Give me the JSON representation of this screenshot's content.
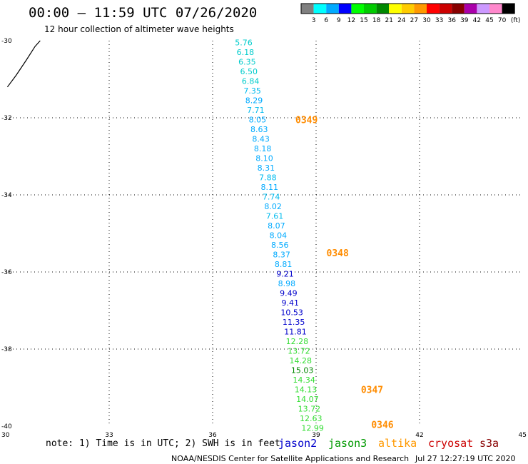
{
  "header": {
    "title": "00:00 – 11:59 UTC 07/26/2020",
    "subtitle": "12 hour collection of altimeter wave heights"
  },
  "legend": {
    "unit": "(ft)",
    "colors": [
      "#808080",
      "#00ffff",
      "#00aaff",
      "#0000ff",
      "#00ff00",
      "#00cc00",
      "#008800",
      "#ffff00",
      "#ffcc00",
      "#ff9900",
      "#ff0000",
      "#cc0000",
      "#880000",
      "#aa00aa",
      "#cc99ff",
      "#ff88cc",
      "#000000"
    ],
    "labels": [
      "3",
      "6",
      "9",
      "12",
      "15",
      "18",
      "21",
      "24",
      "27",
      "30",
      "33",
      "36",
      "39",
      "42",
      "45",
      "70"
    ]
  },
  "chart_data": {
    "type": "scatter",
    "xlim": [
      30,
      45
    ],
    "ylim": [
      -40,
      -30
    ],
    "x_ticks": [
      "30",
      "33",
      "36",
      "39",
      "42",
      "45"
    ],
    "y_ticks": [
      "-30",
      "-32",
      "-34",
      "-36",
      "-38",
      "-40"
    ],
    "grid": true,
    "points": [
      {
        "x": 36.9,
        "y": -30.05,
        "v": "5.76",
        "c": "#00cccc"
      },
      {
        "x": 36.95,
        "y": -30.3,
        "v": "6.18",
        "c": "#00cccc"
      },
      {
        "x": 37.0,
        "y": -30.55,
        "v": "6.35",
        "c": "#00cccc"
      },
      {
        "x": 37.05,
        "y": -30.8,
        "v": "6.50",
        "c": "#00cccc"
      },
      {
        "x": 37.1,
        "y": -31.05,
        "v": "6.84",
        "c": "#00cccc"
      },
      {
        "x": 37.15,
        "y": -31.3,
        "v": "7.35",
        "c": "#00bbee"
      },
      {
        "x": 37.2,
        "y": -31.55,
        "v": "8.29",
        "c": "#00aaff"
      },
      {
        "x": 37.25,
        "y": -31.8,
        "v": "7.71",
        "c": "#00bbee"
      },
      {
        "x": 37.3,
        "y": -32.05,
        "v": "8.05",
        "c": "#00aaff"
      },
      {
        "x": 37.35,
        "y": -32.3,
        "v": "8.63",
        "c": "#00aaff"
      },
      {
        "x": 37.4,
        "y": -32.55,
        "v": "8.43",
        "c": "#00aaff"
      },
      {
        "x": 37.45,
        "y": -32.8,
        "v": "8.18",
        "c": "#00aaff"
      },
      {
        "x": 37.5,
        "y": -33.05,
        "v": "8.10",
        "c": "#00aaff"
      },
      {
        "x": 37.55,
        "y": -33.3,
        "v": "8.31",
        "c": "#00aaff"
      },
      {
        "x": 37.6,
        "y": -33.55,
        "v": "7.88",
        "c": "#00bbee"
      },
      {
        "x": 37.65,
        "y": -33.8,
        "v": "8.11",
        "c": "#00aaff"
      },
      {
        "x": 37.7,
        "y": -34.05,
        "v": "7.74",
        "c": "#00bbee"
      },
      {
        "x": 37.75,
        "y": -34.3,
        "v": "8.02",
        "c": "#00aaff"
      },
      {
        "x": 37.8,
        "y": -34.55,
        "v": "7.61",
        "c": "#00bbee"
      },
      {
        "x": 37.85,
        "y": -34.8,
        "v": "8.07",
        "c": "#00aaff"
      },
      {
        "x": 37.9,
        "y": -35.05,
        "v": "8.04",
        "c": "#00aaff"
      },
      {
        "x": 37.95,
        "y": -35.3,
        "v": "8.56",
        "c": "#00aaff"
      },
      {
        "x": 38.0,
        "y": -35.55,
        "v": "8.37",
        "c": "#00aaff"
      },
      {
        "x": 38.05,
        "y": -35.8,
        "v": "8.81",
        "c": "#00aaff"
      },
      {
        "x": 38.1,
        "y": -36.05,
        "v": "9.21",
        "c": "#0000cc"
      },
      {
        "x": 38.15,
        "y": -36.3,
        "v": "8.98",
        "c": "#00aaff"
      },
      {
        "x": 38.2,
        "y": -36.55,
        "v": "9.49",
        "c": "#0000cc"
      },
      {
        "x": 38.25,
        "y": -36.8,
        "v": "9.41",
        "c": "#0000cc"
      },
      {
        "x": 38.3,
        "y": -37.05,
        "v": "10.53",
        "c": "#0000cc"
      },
      {
        "x": 38.35,
        "y": -37.3,
        "v": "11.35",
        "c": "#0000cc"
      },
      {
        "x": 38.4,
        "y": -37.55,
        "v": "11.81",
        "c": "#0000cc"
      },
      {
        "x": 38.45,
        "y": -37.8,
        "v": "12.28",
        "c": "#33dd33"
      },
      {
        "x": 38.5,
        "y": -38.05,
        "v": "13.72",
        "c": "#33dd33"
      },
      {
        "x": 38.55,
        "y": -38.3,
        "v": "14.28",
        "c": "#33dd33"
      },
      {
        "x": 38.6,
        "y": -38.55,
        "v": "15.03",
        "c": "#008800"
      },
      {
        "x": 38.65,
        "y": -38.8,
        "v": "14.34",
        "c": "#33dd33"
      },
      {
        "x": 38.7,
        "y": -39.05,
        "v": "14.13",
        "c": "#33dd33"
      },
      {
        "x": 38.75,
        "y": -39.3,
        "v": "14.07",
        "c": "#33dd33"
      },
      {
        "x": 38.8,
        "y": -39.55,
        "v": "13.72",
        "c": "#33dd33"
      },
      {
        "x": 38.85,
        "y": -39.8,
        "v": "12.63",
        "c": "#33dd33"
      },
      {
        "x": 38.9,
        "y": -40.05,
        "v": "12.99",
        "c": "#33dd33"
      }
    ],
    "time_markers": [
      {
        "x": 38.4,
        "y": -32.05,
        "t": "0349"
      },
      {
        "x": 39.3,
        "y": -35.5,
        "t": "0348"
      },
      {
        "x": 40.3,
        "y": -39.05,
        "t": "0347"
      },
      {
        "x": 40.6,
        "y": -39.95,
        "t": "0346"
      }
    ],
    "coastline": [
      [
        30.05,
        -31.2
      ],
      [
        30.3,
        -30.9
      ],
      [
        30.6,
        -30.5
      ],
      [
        30.85,
        -30.15
      ],
      [
        31.0,
        -30.0
      ]
    ]
  },
  "footer": {
    "note": "note: 1) Time is in UTC; 2) SWH is in feet",
    "satellites": [
      {
        "name": "jason2",
        "color": "#0000cc"
      },
      {
        "name": "jason3",
        "color": "#009900"
      },
      {
        "name": "altika",
        "color": "#ff9900"
      },
      {
        "name": "cryosat",
        "color": "#cc0000"
      },
      {
        "name": "s3a",
        "color": "#880000"
      }
    ],
    "credit": "NOAA/NESDIS Center for Satellite Applications and Research",
    "timestamp": "Jul 27 12:27:19 UTC 2020"
  }
}
